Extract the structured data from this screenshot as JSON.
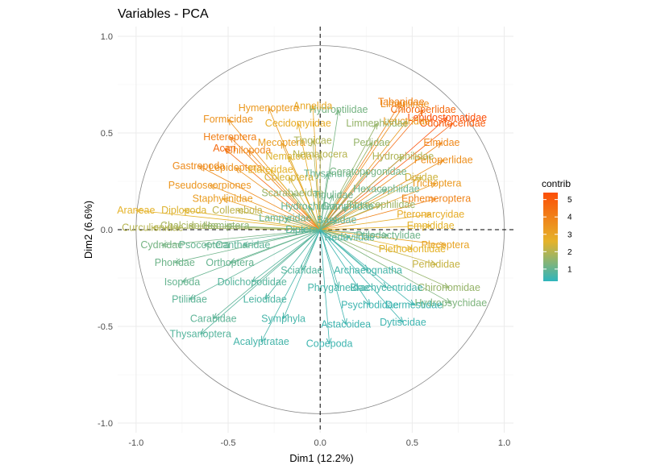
{
  "chart_data": {
    "type": "scatter",
    "title": "Variables - PCA",
    "xlabel": "Dim1 (12.2%)",
    "ylabel": "Dim2 (6.6%)",
    "xlim": [
      -1.1,
      1.05
    ],
    "ylim": [
      -1.05,
      1.05
    ],
    "xticks": [
      "-1.0",
      "-0.5",
      "0.0",
      "0.5",
      "1.0"
    ],
    "yticks": [
      "-1.0",
      "-0.5",
      "0.0",
      "0.5",
      "1.0"
    ],
    "grid": true,
    "legend": {
      "title": "contrib",
      "position": "right",
      "ticks": [
        "1",
        "2",
        "3",
        "4",
        "5"
      ],
      "range": [
        0.3,
        5.4
      ]
    },
    "colors": {
      "low": "#2eb5bd",
      "mid": "#e5b32a",
      "high": "#fc4e07"
    },
    "variables": [
      {
        "name": "Chloroperlidae",
        "x": 0.56,
        "y": 0.62,
        "contrib": 4.6
      },
      {
        "name": "Tabanidae",
        "x": 0.44,
        "y": 0.66,
        "contrib": 4.0
      },
      {
        "name": "Lepidostomatidae",
        "x": 0.69,
        "y": 0.58,
        "contrib": 5.4
      },
      {
        "name": "Odontoceridae",
        "x": 0.72,
        "y": 0.55,
        "contrib": 5.0
      },
      {
        "name": "Limoniinae",
        "x": 0.46,
        "y": 0.65,
        "contrib": 3.6
      },
      {
        "name": "Elmidae",
        "x": 0.66,
        "y": 0.45,
        "contrib": 3.8
      },
      {
        "name": "Peltoperlidae",
        "x": 0.67,
        "y": 0.36,
        "contrib": 3.6
      },
      {
        "name": "Trichoptera",
        "x": 0.63,
        "y": 0.24,
        "contrib": 3.3
      },
      {
        "name": "Ephemeroptera",
        "x": 0.63,
        "y": 0.16,
        "contrib": 3.9
      },
      {
        "name": "Pteronarcyidae",
        "x": 0.6,
        "y": 0.08,
        "contrib": 2.8
      },
      {
        "name": "Empididae",
        "x": 0.6,
        "y": 0.02,
        "contrib": 2.6
      },
      {
        "name": "Plecoptera",
        "x": 0.68,
        "y": -0.08,
        "contrib": 3.0
      },
      {
        "name": "Plethodontidae",
        "x": 0.5,
        "y": -0.1,
        "contrib": 2.6
      },
      {
        "name": "Perlodidae",
        "x": 0.63,
        "y": -0.18,
        "contrib": 2.2
      },
      {
        "name": "Chironomidae",
        "x": 0.7,
        "y": -0.3,
        "contrib": 1.6
      },
      {
        "name": "Hydropsychidae",
        "x": 0.71,
        "y": -0.38,
        "contrib": 1.3
      },
      {
        "name": "Dixidae",
        "x": 0.55,
        "y": 0.27,
        "contrib": 2.3
      },
      {
        "name": "Hydrophilidae",
        "x": 0.45,
        "y": 0.38,
        "contrib": 1.9
      },
      {
        "name": "Perlidae",
        "x": 0.28,
        "y": 0.45,
        "contrib": 1.6
      },
      {
        "name": "Leuctridae",
        "x": 0.47,
        "y": 0.56,
        "contrib": 3.3
      },
      {
        "name": "Limnephilidae",
        "x": 0.31,
        "y": 0.55,
        "contrib": 1.6
      },
      {
        "name": "Hydroptilidae",
        "x": 0.1,
        "y": 0.62,
        "contrib": 1.2
      },
      {
        "name": "Annelida",
        "x": -0.04,
        "y": 0.64,
        "contrib": 2.9
      },
      {
        "name": "Hymenoptera",
        "x": -0.28,
        "y": 0.63,
        "contrib": 3.3
      },
      {
        "name": "Formicidae",
        "x": -0.5,
        "y": 0.57,
        "contrib": 3.5
      },
      {
        "name": "Cecidomyiidae",
        "x": -0.12,
        "y": 0.55,
        "contrib": 2.8
      },
      {
        "name": "Heteroptera",
        "x": -0.49,
        "y": 0.48,
        "contrib": 4.0
      },
      {
        "name": "Mecoptera",
        "x": -0.21,
        "y": 0.45,
        "contrib": 3.2
      },
      {
        "name": "Tingidae",
        "x": -0.04,
        "y": 0.46,
        "contrib": 1.9
      },
      {
        "name": "Acari",
        "x": -0.52,
        "y": 0.42,
        "contrib": 4.6
      },
      {
        "name": "Chilopoda",
        "x": -0.39,
        "y": 0.41,
        "contrib": 3.8
      },
      {
        "name": "Nematoda",
        "x": -0.17,
        "y": 0.38,
        "contrib": 2.5
      },
      {
        "name": "Nematocera",
        "x": 0.0,
        "y": 0.39,
        "contrib": 2.0
      },
      {
        "name": "Gastropoda",
        "x": -0.66,
        "y": 0.33,
        "contrib": 3.7
      },
      {
        "name": "Lepidoptera",
        "x": -0.46,
        "y": 0.32,
        "contrib": 3.5
      },
      {
        "name": "Elateridae",
        "x": -0.27,
        "y": 0.31,
        "contrib": 2.6
      },
      {
        "name": "Coleoptera",
        "x": -0.17,
        "y": 0.27,
        "contrib": 2.4
      },
      {
        "name": "Thysanura",
        "x": 0.04,
        "y": 0.29,
        "contrib": 1.0
      },
      {
        "name": "Ceratopogonidae",
        "x": 0.26,
        "y": 0.3,
        "contrib": 1.2
      },
      {
        "name": "Hexacophiidae",
        "x": 0.36,
        "y": 0.21,
        "contrib": 1.1
      },
      {
        "name": "Pseudoscorpiones",
        "x": -0.6,
        "y": 0.23,
        "contrib": 3.4
      },
      {
        "name": "Scarabaeidae",
        "x": -0.15,
        "y": 0.19,
        "contrib": 1.6
      },
      {
        "name": "Tipulidae",
        "x": 0.07,
        "y": 0.18,
        "contrib": 1.1
      },
      {
        "name": "Staphylinidae",
        "x": -0.53,
        "y": 0.16,
        "contrib": 3.2
      },
      {
        "name": "Rhyacophilidae",
        "x": 0.33,
        "y": 0.13,
        "contrib": 1.7
      },
      {
        "name": "Hydrochidae",
        "x": -0.06,
        "y": 0.12,
        "contrib": 1.0
      },
      {
        "name": "Gomphidae",
        "x": 0.15,
        "y": 0.12,
        "contrib": 1.0
      },
      {
        "name": "Araneae",
        "x": -1.0,
        "y": 0.1,
        "contrib": 2.6
      },
      {
        "name": "Diplopoda",
        "x": -0.74,
        "y": 0.1,
        "contrib": 2.5
      },
      {
        "name": "Collembola",
        "x": -0.45,
        "y": 0.1,
        "contrib": 2.1
      },
      {
        "name": "Lampyridae",
        "x": -0.19,
        "y": 0.06,
        "contrib": 1.0
      },
      {
        "name": "Baetidae",
        "x": 0.09,
        "y": 0.05,
        "contrib": 0.9
      },
      {
        "name": "Curculionidae",
        "x": -0.91,
        "y": 0.01,
        "contrib": 2.0
      },
      {
        "name": "Chalcidoidea",
        "x": -0.71,
        "y": 0.02,
        "contrib": 1.8
      },
      {
        "name": "Hemiptera",
        "x": -0.51,
        "y": 0.02,
        "contrib": 1.5
      },
      {
        "name": "Diptera",
        "x": -0.1,
        "y": 0.0,
        "contrib": 0.8
      },
      {
        "name": "Reduviidae",
        "x": 0.16,
        "y": -0.04,
        "contrib": 0.7
      },
      {
        "name": "Ptilodactylidae",
        "x": 0.37,
        "y": -0.03,
        "contrib": 1.1
      },
      {
        "name": "Cydnidae",
        "x": -0.86,
        "y": -0.08,
        "contrib": 1.2
      },
      {
        "name": "Psocoptera",
        "x": -0.63,
        "y": -0.08,
        "contrib": 1.0
      },
      {
        "name": "Cantharidae",
        "x": -0.42,
        "y": -0.08,
        "contrib": 0.9
      },
      {
        "name": "Phoridae",
        "x": -0.79,
        "y": -0.17,
        "contrib": 1.1
      },
      {
        "name": "Orthoptera",
        "x": -0.49,
        "y": -0.17,
        "contrib": 1.0
      },
      {
        "name": "Sciaridae",
        "x": -0.1,
        "y": -0.21,
        "contrib": 0.8
      },
      {
        "name": "Archaeognatha",
        "x": 0.26,
        "y": -0.21,
        "contrib": 0.6
      },
      {
        "name": "Isopoda",
        "x": -0.75,
        "y": -0.27,
        "contrib": 1.0
      },
      {
        "name": "Dolichopodidae",
        "x": -0.37,
        "y": -0.27,
        "contrib": 0.8
      },
      {
        "name": "Phryganeidae",
        "x": 0.1,
        "y": -0.3,
        "contrib": 0.6
      },
      {
        "name": "Brachycentridae",
        "x": 0.36,
        "y": -0.3,
        "contrib": 0.6
      },
      {
        "name": "Ptiliidae",
        "x": -0.71,
        "y": -0.36,
        "contrib": 0.9
      },
      {
        "name": "Leiodidae",
        "x": -0.3,
        "y": -0.36,
        "contrib": 0.7
      },
      {
        "name": "Psychodidae",
        "x": 0.27,
        "y": -0.39,
        "contrib": 0.5
      },
      {
        "name": "Dermestidae",
        "x": 0.51,
        "y": -0.39,
        "contrib": 0.5
      },
      {
        "name": "Carabidae",
        "x": -0.58,
        "y": -0.46,
        "contrib": 0.9
      },
      {
        "name": "Symphyla",
        "x": -0.2,
        "y": -0.46,
        "contrib": 0.6
      },
      {
        "name": "Astacoidea",
        "x": 0.14,
        "y": -0.49,
        "contrib": 0.5
      },
      {
        "name": "Dytiscidae",
        "x": 0.45,
        "y": -0.48,
        "contrib": 0.5
      },
      {
        "name": "Thysanoptera",
        "x": -0.65,
        "y": -0.54,
        "contrib": 0.8
      },
      {
        "name": "Acalyptratae",
        "x": -0.32,
        "y": -0.58,
        "contrib": 0.6
      },
      {
        "name": "Copepoda",
        "x": 0.05,
        "y": -0.59,
        "contrib": 0.5
      }
    ]
  }
}
